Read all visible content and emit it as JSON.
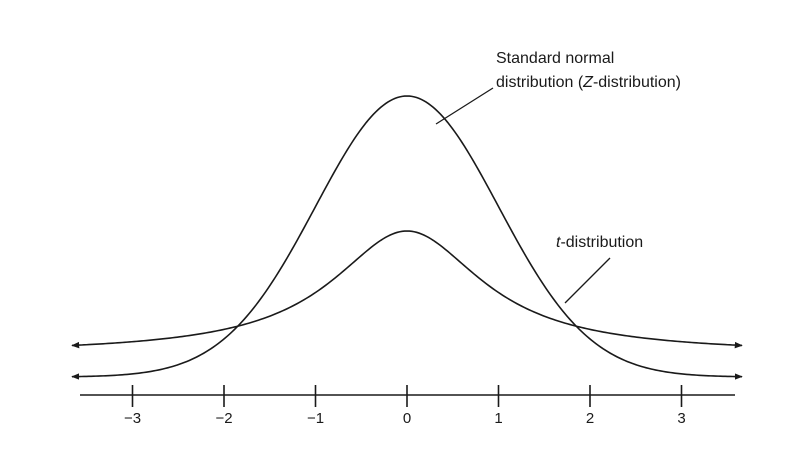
{
  "labels": {
    "normal_line1": "Standard normal",
    "normal_line2_prefix": "distribution (",
    "normal_line2_italic": "Z",
    "normal_line2_suffix": "-distribution)",
    "t_italic": "t",
    "t_suffix": "-distribution"
  },
  "axis": {
    "ticks": [
      -3,
      -2,
      -1,
      0,
      1,
      2,
      3
    ],
    "tick_labels": [
      "−3",
      "−2",
      "−1",
      "0",
      "1",
      "2",
      "3"
    ]
  },
  "chart_data": {
    "type": "line",
    "x_range": [
      -3.5,
      3.5
    ],
    "series": [
      {
        "id": "standard-normal",
        "distribution": "normal",
        "mean": 0,
        "sd": 1
      },
      {
        "id": "t-distribution",
        "distribution": "t",
        "df": 1
      }
    ]
  }
}
